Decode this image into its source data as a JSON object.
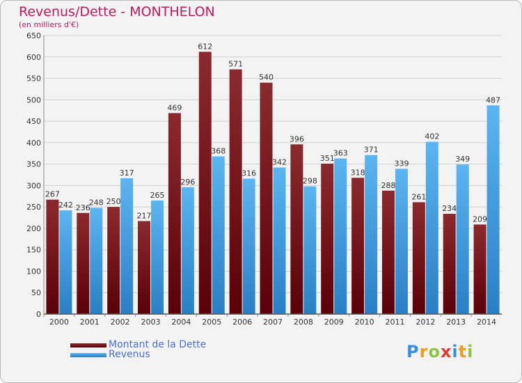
{
  "chart_data": {
    "type": "bar",
    "title": "Revenus/Dette - MONTHELON",
    "subtitle": "(en milliers d'€)",
    "categories": [
      "2000",
      "2001",
      "2002",
      "2003",
      "2004",
      "2005",
      "2006",
      "2007",
      "2008",
      "2009",
      "2010",
      "2011",
      "2012",
      "2013",
      "2014"
    ],
    "series": [
      {
        "name": "Montant de la Dette",
        "color": "#7b1e22",
        "values": [
          267,
          236,
          250,
          217,
          469,
          612,
          571,
          540,
          396,
          351,
          318,
          288,
          261,
          234,
          209
        ]
      },
      {
        "name": "Revenus",
        "color": "#4aa3e6",
        "values": [
          242,
          248,
          317,
          265,
          296,
          368,
          316,
          342,
          298,
          363,
          371,
          339,
          402,
          349,
          487
        ]
      }
    ],
    "ylim": [
      0,
      650
    ],
    "yticks": [
      0,
      50,
      100,
      150,
      200,
      250,
      300,
      350,
      400,
      450,
      500,
      550,
      600,
      650
    ],
    "grid": true,
    "legend": "bottom-left"
  },
  "legend": {
    "debt_label": "Montant de la Dette",
    "revenue_label": "Revenus"
  },
  "logo": {
    "letters": [
      "P",
      "r",
      "o",
      "x",
      "i",
      "t",
      "i"
    ],
    "colors": [
      "#3b8ede",
      "#f29a1c",
      "#8cc63f",
      "#e53935",
      "#3b8ede",
      "#f29a1c",
      "#8cc63f"
    ]
  }
}
